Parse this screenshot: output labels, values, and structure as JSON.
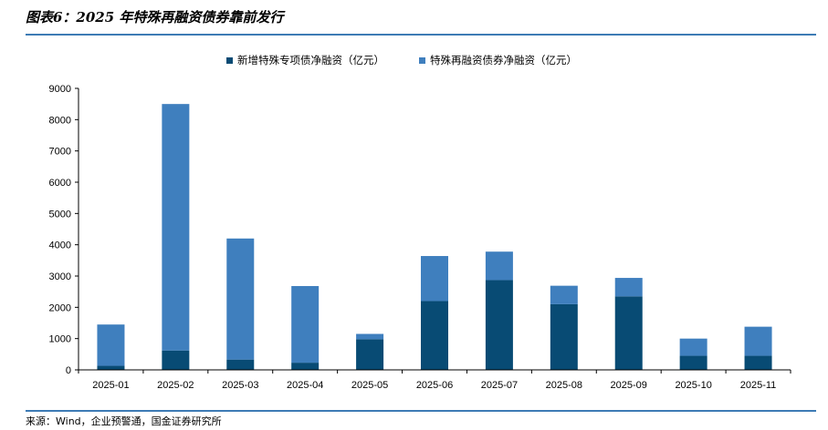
{
  "header": {
    "title": "图表6：2025 年特殊再融资债券靠前发行"
  },
  "footer": {
    "source": "来源：Wind，企业预警通，国金证券研究所"
  },
  "colors": {
    "series1": "#084b74",
    "series2": "#3f7fbe",
    "rule": "#3d7bb5"
  },
  "chart_data": {
    "type": "bar",
    "stacked": true,
    "title": "",
    "xlabel": "",
    "ylabel": "",
    "ylim": [
      0,
      9000
    ],
    "yticks": [
      0,
      1000,
      2000,
      3000,
      4000,
      5000,
      6000,
      7000,
      8000,
      9000
    ],
    "grid": false,
    "legend_position": "top",
    "categories": [
      "2025-01",
      "2025-02",
      "2025-03",
      "2025-04",
      "2025-05",
      "2025-06",
      "2025-07",
      "2025-08",
      "2025-09",
      "2025-10",
      "2025-11"
    ],
    "series": [
      {
        "name": "新增特殊专项债净融资（亿元）",
        "color": "#084b74",
        "values": [
          130,
          620,
          330,
          230,
          980,
          2200,
          2870,
          2100,
          2350,
          450,
          450
        ]
      },
      {
        "name": "特殊再融资债券净融资（亿元）",
        "color": "#3f7fbe",
        "values": [
          1320,
          7880,
          3870,
          2450,
          170,
          1440,
          910,
          590,
          590,
          550,
          930
        ]
      }
    ]
  }
}
